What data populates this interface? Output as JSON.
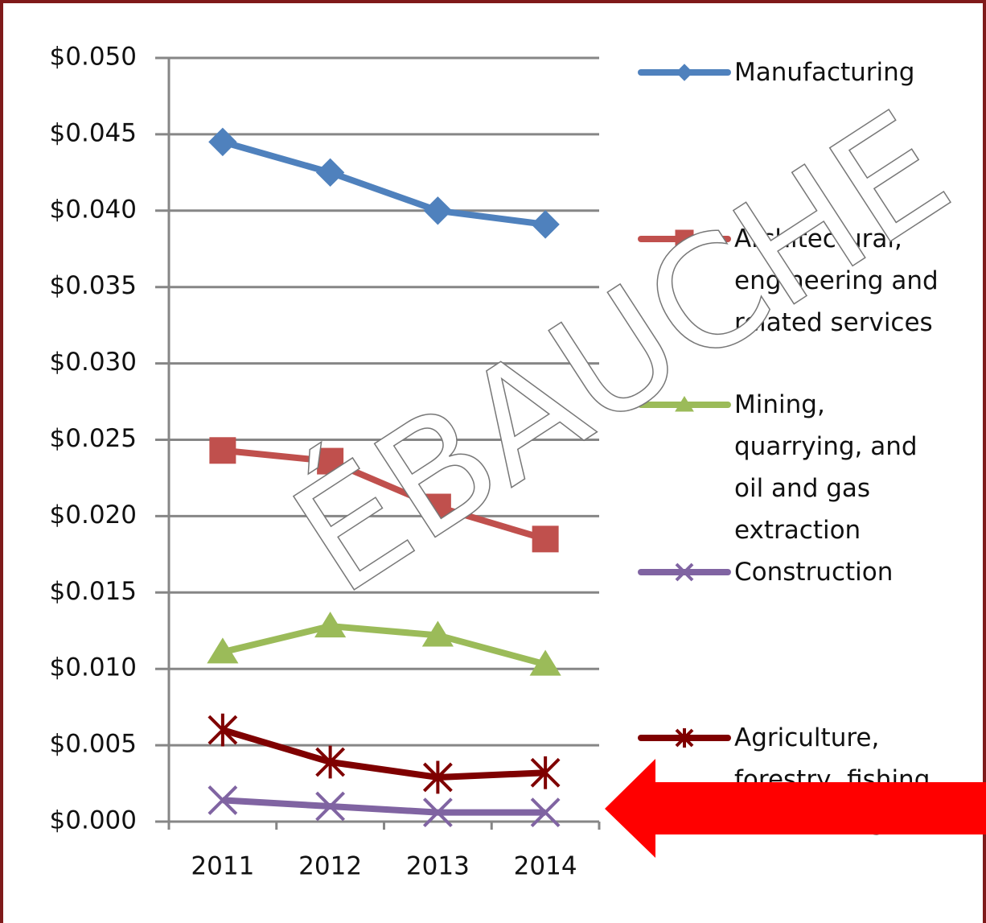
{
  "chart_data": {
    "type": "line",
    "categories": [
      "2011",
      "2012",
      "2013",
      "2014"
    ],
    "series": [
      {
        "name": "Manufacturing",
        "color": "#4f81bd",
        "marker": "diamond",
        "values": [
          0.0445,
          0.0425,
          0.04,
          0.0391
        ]
      },
      {
        "name": "Architectural, engineering and related services",
        "color": "#c0504d",
        "marker": "square",
        "values": [
          0.0243,
          0.0236,
          0.0206,
          0.0185
        ]
      },
      {
        "name": "Mining, quarrying, and oil and gas extraction",
        "color": "#9bbb59",
        "marker": "triangle",
        "values": [
          0.0111,
          0.0128,
          0.0122,
          0.0103
        ]
      },
      {
        "name": "Construction",
        "color": "#8064a2",
        "marker": "x",
        "values": [
          0.0014,
          0.001,
          0.0006,
          0.0006
        ]
      },
      {
        "name": "Agriculture, forestry, fishing and hunting",
        "color": "#7f0000",
        "marker": "star",
        "values": [
          0.006,
          0.0039,
          0.0029,
          0.0032
        ]
      }
    ],
    "ylim": [
      0,
      0.05
    ],
    "yticks": [
      {
        "value": 0,
        "label": "$0.000"
      },
      {
        "value": 0.005,
        "label": "$0.005"
      },
      {
        "value": 0.01,
        "label": "$0.010"
      },
      {
        "value": 0.015,
        "label": "$0.015"
      },
      {
        "value": 0.02,
        "label": "$0.020"
      },
      {
        "value": 0.025,
        "label": "$0.025"
      },
      {
        "value": 0.03,
        "label": "$0.030"
      },
      {
        "value": 0.035,
        "label": "$0.035"
      },
      {
        "value": 0.04,
        "label": "$0.040"
      },
      {
        "value": 0.045,
        "label": "$0.045"
      },
      {
        "value": 0.05,
        "label": "$0.050"
      }
    ],
    "grid": true,
    "legend": "right",
    "watermark": "ÉBAUCHE"
  }
}
